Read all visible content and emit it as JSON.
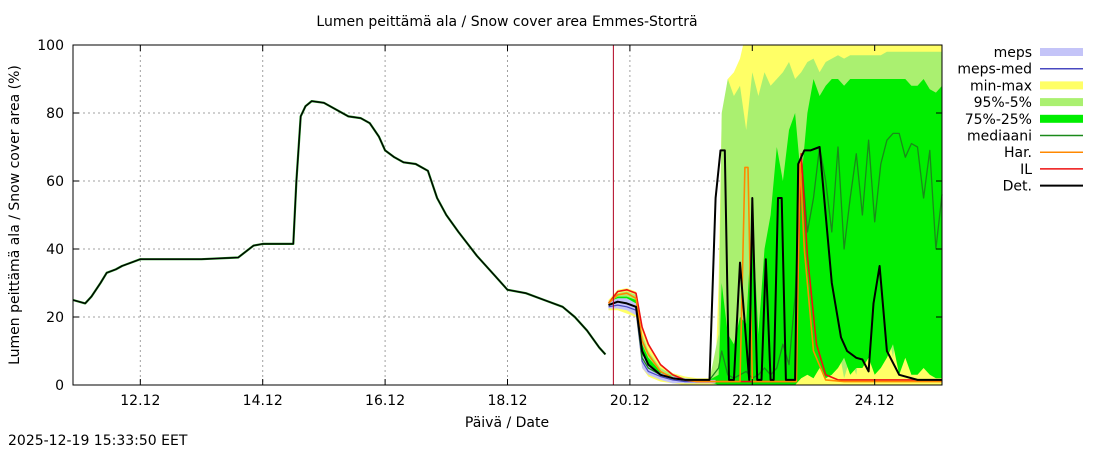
{
  "chart_data": {
    "type": "line",
    "title": "Lumen peittämä ala / Snow cover area Emmes-Storträ",
    "xlabel": "Päivä / Date",
    "ylabel": "Lumen peittämä ala / Snow cover area (%)",
    "xlim": [
      10.9,
      25.1
    ],
    "ylim": [
      0,
      100
    ],
    "x_ticks": [
      12,
      14,
      16,
      18,
      20,
      22,
      24
    ],
    "x_tick_labels": [
      "12.12",
      "14.12",
      "16.12",
      "18.12",
      "20.12",
      "22.12",
      "24.12"
    ],
    "y_ticks": [
      0,
      20,
      40,
      60,
      80,
      100
    ],
    "y_tick_labels": [
      "0",
      "20",
      "40",
      "60",
      "80",
      "100"
    ],
    "grid": true,
    "now_line_x": 19.73,
    "timestamp": "2025-12-19 15:33:50 EET",
    "legend_position": "right",
    "legend": [
      {
        "label": "meps",
        "kind": "band",
        "color": "#c4c4f8"
      },
      {
        "label": "meps-med",
        "kind": "line",
        "color": "#4848c0"
      },
      {
        "label": "min-max",
        "kind": "band",
        "color": "#ffff66"
      },
      {
        "label": "95%-5%",
        "kind": "band",
        "color": "#aaf070"
      },
      {
        "label": "75%-25%",
        "kind": "band",
        "color": "#00ee00"
      },
      {
        "label": "mediaani",
        "kind": "line",
        "color": "#1a8a1a"
      },
      {
        "label": "Har.",
        "kind": "line",
        "color": "#ff8800"
      },
      {
        "label": "IL",
        "kind": "line",
        "color": "#ee1111"
      },
      {
        "label": "Det.",
        "kind": "line",
        "color": "#000000"
      }
    ],
    "history": {
      "x": [
        10.9,
        11.1,
        11.2,
        11.35,
        11.45,
        11.6,
        11.7,
        11.85,
        12.0,
        12.5,
        13.0,
        13.6,
        13.85,
        14.0,
        14.5,
        14.55,
        14.62,
        14.7,
        14.8,
        15.0,
        15.2,
        15.4,
        15.6,
        15.75,
        15.9,
        16.0,
        16.15,
        16.3,
        16.5,
        16.7,
        16.85,
        17.0,
        17.2,
        17.5,
        17.8,
        18.0,
        18.3,
        18.6,
        18.9,
        19.1,
        19.3,
        19.5,
        19.6
      ],
      "values": [
        25,
        24,
        26,
        30,
        33,
        34,
        35,
        36,
        37,
        37,
        37,
        37.5,
        41,
        41.5,
        41.5,
        60,
        79,
        82,
        83.5,
        83,
        81,
        79,
        78.5,
        77,
        73,
        69,
        67,
        65.5,
        65,
        63,
        55,
        50,
        45,
        38,
        32,
        28,
        27,
        25,
        23,
        20,
        16,
        11,
        9
      ]
    },
    "series": [
      {
        "name": "Det.",
        "x": [
          19.65,
          19.8,
          19.95,
          20.1,
          20.2,
          20.3,
          20.5,
          20.7,
          20.9,
          21.1,
          21.3,
          21.4,
          21.48,
          21.55,
          21.62,
          21.7,
          21.8,
          21.95,
          22.0,
          22.08,
          22.15,
          22.22,
          22.3,
          22.35,
          22.42,
          22.48,
          22.55,
          22.62,
          22.7,
          22.75,
          22.85,
          22.95,
          23.1,
          23.2,
          23.3,
          23.45,
          23.55,
          23.7,
          23.8,
          23.9,
          23.98,
          24.08,
          24.2,
          24.4,
          24.7,
          25.1
        ],
        "values": [
          23.5,
          24.5,
          24,
          23,
          10,
          6,
          3,
          2,
          1.5,
          1.5,
          1.5,
          55,
          69,
          69,
          1.5,
          1.5,
          36,
          1.5,
          55,
          1.5,
          1.5,
          37,
          1.5,
          1.5,
          55,
          55,
          1.5,
          1.5,
          1.5,
          65,
          69,
          69,
          70,
          50,
          30,
          14,
          10,
          8,
          7.5,
          4,
          24,
          35,
          10,
          3,
          1.5,
          1.5
        ]
      },
      {
        "name": "mediaani",
        "x": [
          19.65,
          19.8,
          19.95,
          20.1,
          20.2,
          20.3,
          20.5,
          20.7,
          20.9,
          21.1,
          21.3,
          21.45,
          21.5,
          21.6,
          21.7,
          21.8,
          21.9,
          22.0,
          22.1,
          22.2,
          22.3,
          22.4,
          22.5,
          22.6,
          22.7,
          22.8,
          22.9,
          23.0,
          23.1,
          23.2,
          23.3,
          23.4,
          23.5,
          23.6,
          23.7,
          23.8,
          23.9,
          24.0,
          24.1,
          24.2,
          24.3,
          24.4,
          24.5,
          24.6,
          24.7,
          24.8,
          24.9,
          25.0,
          25.1
        ],
        "values": [
          23.5,
          24.5,
          24,
          23,
          8,
          5,
          3,
          2,
          1.5,
          1.5,
          1.5,
          5,
          10,
          3,
          2,
          3,
          4,
          2,
          3,
          5,
          3,
          5,
          12,
          6,
          26,
          68,
          45,
          55,
          70,
          60,
          45,
          70,
          40,
          55,
          68,
          50,
          72,
          48,
          65,
          72,
          74,
          74,
          67,
          71,
          70,
          55,
          69,
          40,
          56
        ]
      },
      {
        "name": "meps-med",
        "x": [
          19.65,
          19.8,
          19.95,
          20.1,
          20.2,
          20.3,
          20.5,
          20.7,
          20.9,
          21.1,
          21.3
        ],
        "values": [
          23,
          23.5,
          23,
          22,
          7,
          4,
          2.5,
          1.5,
          1,
          1,
          1
        ]
      },
      {
        "name": "Har.",
        "x": [
          19.65,
          19.8,
          19.95,
          20.1,
          20.2,
          20.3,
          20.5,
          20.7,
          20.9,
          21.1,
          21.3,
          21.5,
          21.8,
          21.88,
          21.93,
          22.0,
          22.3,
          22.5,
          22.65,
          22.72,
          22.78,
          22.85,
          23.0,
          23.2,
          23.5,
          24.0,
          25.1
        ],
        "values": [
          24,
          26.5,
          27,
          25.5,
          13,
          9,
          4,
          2,
          1.5,
          1,
          1,
          1,
          1,
          64,
          64,
          1,
          1,
          1,
          1,
          1,
          66,
          40,
          10,
          1.5,
          1,
          1,
          1
        ]
      },
      {
        "name": "IL",
        "x": [
          19.65,
          19.8,
          19.95,
          20.1,
          20.2,
          20.3,
          20.5,
          20.7,
          20.9,
          21.1,
          21.3,
          21.5,
          22.6,
          22.7,
          22.8,
          22.9,
          23.05,
          23.2,
          23.4,
          23.6,
          24.0,
          25.1
        ],
        "values": [
          24,
          27.5,
          28,
          27,
          17,
          12,
          6,
          3,
          1.5,
          1,
          1,
          1,
          1,
          1,
          68,
          38,
          12,
          3,
          1.5,
          1.5,
          1.5,
          1.5
        ]
      }
    ],
    "bands": [
      {
        "name": "meps",
        "x": [
          19.65,
          19.8,
          19.95,
          20.1,
          20.2,
          20.3,
          20.5,
          20.7,
          20.9,
          21.1,
          21.3,
          21.4
        ],
        "upper": [
          24.5,
          25.5,
          25.5,
          24,
          9,
          6,
          3.5,
          2.5,
          2,
          1.5,
          1.5,
          1.5
        ],
        "lower": [
          22.5,
          22.5,
          22,
          20.5,
          5,
          3,
          1.5,
          0.5,
          0.5,
          0.5,
          0.5,
          0.5
        ]
      },
      {
        "name": "min-max",
        "x": [
          19.65,
          19.8,
          19.95,
          20.1,
          20.2,
          20.3,
          20.5,
          20.7,
          20.9,
          21.1,
          21.3,
          21.4,
          21.45,
          21.5,
          21.6,
          21.7,
          21.8,
          21.85,
          21.9,
          22.0,
          22.5,
          23.0,
          23.5,
          24.0,
          24.5,
          25.1
        ],
        "upper": [
          25,
          28,
          28.5,
          27.5,
          17,
          12,
          6,
          3.5,
          2.5,
          2,
          2,
          5,
          30,
          78,
          90,
          92,
          96,
          100,
          100,
          100,
          100,
          100,
          100,
          100,
          100,
          100
        ],
        "lower": [
          22,
          22,
          21,
          20,
          5,
          2.5,
          1,
          0.5,
          0,
          0,
          0,
          0,
          0,
          0,
          0,
          0,
          0,
          0,
          0,
          0,
          0,
          0,
          0,
          0,
          0,
          0
        ]
      },
      {
        "name": "95%-5%",
        "x": [
          19.65,
          19.8,
          19.95,
          20.1,
          20.2,
          20.3,
          20.5,
          20.7,
          20.9,
          21.1,
          21.3,
          21.45,
          21.5,
          21.6,
          21.7,
          21.8,
          21.9,
          22.0,
          22.1,
          22.2,
          22.3,
          22.4,
          22.5,
          22.6,
          22.7,
          22.8,
          22.9,
          23.0,
          23.1,
          23.2,
          23.3,
          23.4,
          23.5,
          23.6,
          23.7,
          23.8,
          23.9,
          24.0,
          24.1,
          24.2,
          24.3,
          24.4,
          24.5,
          24.6,
          24.7,
          24.8,
          24.9,
          25.0,
          25.1
        ],
        "upper": [
          24.5,
          27,
          27.5,
          26.5,
          15,
          10,
          5,
          3,
          2,
          1.5,
          1.5,
          15,
          80,
          90,
          85,
          88,
          75,
          92,
          85,
          92,
          88,
          90,
          92,
          95,
          90,
          92,
          95,
          96,
          92,
          95,
          96,
          97,
          96,
          97,
          97,
          97,
          97,
          97,
          97,
          98,
          98,
          98,
          98,
          98,
          98,
          98,
          98,
          98,
          98
        ],
        "lower": [
          22.5,
          23,
          22.5,
          21,
          6,
          3.5,
          1.5,
          1,
          0.5,
          0.5,
          0.5,
          0,
          0,
          0,
          0,
          8,
          0,
          3,
          0,
          5,
          8,
          2,
          3,
          8,
          2,
          12,
          3,
          2,
          8,
          12,
          5,
          12,
          2,
          8,
          3,
          18,
          8,
          12,
          8,
          18,
          8,
          22,
          8,
          12,
          22,
          5,
          12,
          8,
          5
        ]
      },
      {
        "name": "75%-25%",
        "x": [
          19.65,
          19.8,
          19.95,
          20.1,
          20.2,
          20.3,
          20.5,
          20.7,
          20.9,
          21.1,
          21.3,
          21.45,
          21.5,
          21.6,
          21.7,
          21.8,
          21.9,
          22.0,
          22.1,
          22.2,
          22.3,
          22.4,
          22.5,
          22.6,
          22.7,
          22.8,
          22.9,
          23.0,
          23.1,
          23.2,
          23.3,
          23.4,
          23.5,
          23.6,
          23.7,
          23.8,
          23.9,
          24.0,
          24.1,
          24.2,
          24.3,
          24.4,
          24.5,
          24.6,
          24.7,
          24.8,
          24.9,
          25.0,
          25.1
        ],
        "upper": [
          24,
          26,
          26,
          25,
          12,
          8,
          4,
          2.5,
          1.8,
          1.5,
          1.5,
          3,
          30,
          15,
          12,
          20,
          18,
          50,
          15,
          40,
          50,
          70,
          60,
          75,
          80,
          60,
          80,
          90,
          85,
          88,
          90,
          90,
          88,
          90,
          90,
          90,
          90,
          90,
          90,
          90,
          90,
          90,
          90,
          88,
          88,
          90,
          87,
          86,
          88
        ],
        "lower": [
          23,
          23.5,
          23,
          22,
          7,
          4,
          2,
          1.2,
          1,
          1,
          1,
          0,
          0,
          0,
          0,
          0,
          0,
          0,
          0,
          0,
          0,
          0,
          0,
          0,
          0,
          2,
          3,
          2,
          5,
          2,
          3,
          5,
          8,
          3,
          5,
          5,
          8,
          3,
          5,
          8,
          12,
          3,
          8,
          3,
          3,
          5,
          3,
          2,
          2
        ]
      }
    ]
  }
}
